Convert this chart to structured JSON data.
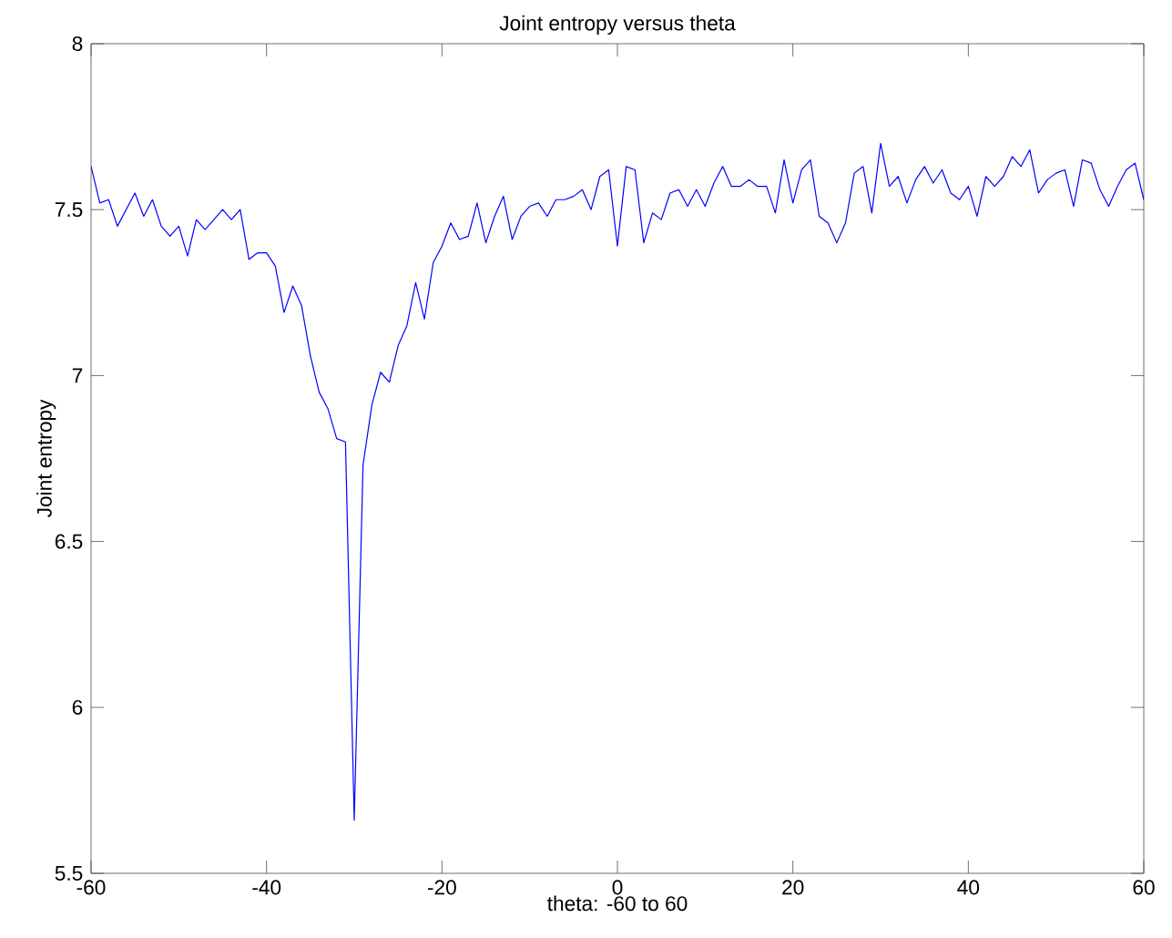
{
  "chart_data": {
    "type": "line",
    "title": "Joint entropy versus theta",
    "xlabel": "theta: -60 to 60",
    "ylabel": "Joint entropy",
    "xlim": [
      -60,
      60
    ],
    "ylim": [
      5.5,
      8
    ],
    "xticks": [
      -60,
      -40,
      -20,
      0,
      20,
      40,
      60
    ],
    "yticks": [
      5.5,
      6,
      6.5,
      7,
      7.5,
      8
    ],
    "grid": false,
    "marker": "none",
    "line_style": "solid",
    "x": [
      -60,
      -59,
      -58,
      -57,
      -56,
      -55,
      -54,
      -53,
      -52,
      -51,
      -50,
      -49,
      -48,
      -47,
      -46,
      -45,
      -44,
      -43,
      -42,
      -41,
      -40,
      -39,
      -38,
      -37,
      -36,
      -35,
      -34,
      -33,
      -32,
      -31,
      -30,
      -29,
      -28,
      -27,
      -26,
      -25,
      -24,
      -23,
      -22,
      -21,
      -20,
      -19,
      -18,
      -17,
      -16,
      -15,
      -14,
      -13,
      -12,
      -11,
      -10,
      -9,
      -8,
      -7,
      -6,
      -5,
      -4,
      -3,
      -2,
      -1,
      0,
      1,
      2,
      3,
      4,
      5,
      6,
      7,
      8,
      9,
      10,
      11,
      12,
      13,
      14,
      15,
      16,
      17,
      18,
      19,
      20,
      21,
      22,
      23,
      24,
      25,
      26,
      27,
      28,
      29,
      30,
      31,
      32,
      33,
      34,
      35,
      36,
      37,
      38,
      39,
      40,
      41,
      42,
      43,
      44,
      45,
      46,
      47,
      48,
      49,
      50,
      51,
      52,
      53,
      54,
      55,
      56,
      57,
      58,
      59,
      60
    ],
    "series": [
      {
        "color": "#0000ff",
        "values": [
          7.63,
          7.52,
          7.53,
          7.45,
          7.5,
          7.55,
          7.48,
          7.53,
          7.45,
          7.42,
          7.45,
          7.36,
          7.47,
          7.44,
          7.47,
          7.5,
          7.47,
          7.5,
          7.35,
          7.37,
          7.37,
          7.33,
          7.19,
          7.27,
          7.21,
          7.06,
          6.95,
          6.9,
          6.81,
          6.8,
          5.66,
          6.73,
          6.91,
          7.01,
          6.98,
          7.09,
          7.15,
          7.28,
          7.17,
          7.34,
          7.39,
          7.46,
          7.41,
          7.42,
          7.52,
          7.4,
          7.48,
          7.54,
          7.41,
          7.48,
          7.51,
          7.52,
          7.48,
          7.53,
          7.53,
          7.54,
          7.56,
          7.5,
          7.6,
          7.62,
          7.39,
          7.63,
          7.62,
          7.4,
          7.49,
          7.47,
          7.55,
          7.56,
          7.51,
          7.56,
          7.51,
          7.58,
          7.63,
          7.57,
          7.57,
          7.59,
          7.57,
          7.57,
          7.49,
          7.65,
          7.52,
          7.62,
          7.65,
          7.48,
          7.46,
          7.4,
          7.46,
          7.61,
          7.63,
          7.49,
          7.7,
          7.57,
          7.6,
          7.52,
          7.59,
          7.63,
          7.58,
          7.62,
          7.55,
          7.53,
          7.57,
          7.48,
          7.6,
          7.57,
          7.6,
          7.66,
          7.63,
          7.68,
          7.55,
          7.59,
          7.61,
          7.62,
          7.51,
          7.65,
          7.64,
          7.56,
          7.51,
          7.57,
          7.62,
          7.64,
          7.53
        ]
      }
    ]
  }
}
